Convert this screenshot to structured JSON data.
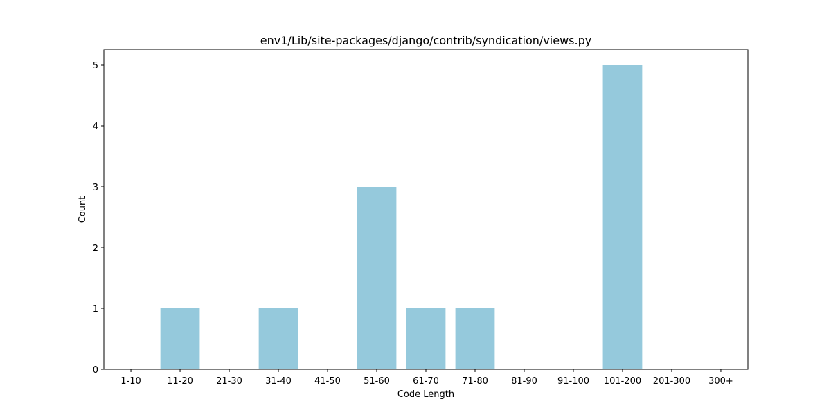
{
  "chart_data": {
    "type": "bar",
    "title": "env1/Lib/site-packages/django/contrib/syndication/views.py",
    "xlabel": "Code Length",
    "ylabel": "Count",
    "categories": [
      "1-10",
      "11-20",
      "21-30",
      "31-40",
      "41-50",
      "51-60",
      "61-70",
      "71-80",
      "81-90",
      "91-100",
      "101-200",
      "201-300",
      "300+"
    ],
    "values": [
      0,
      1,
      0,
      1,
      0,
      3,
      1,
      1,
      0,
      0,
      5,
      0,
      0
    ],
    "ylim": [
      0,
      5.25
    ],
    "yticks": [
      0,
      1,
      2,
      3,
      4,
      5
    ],
    "grid": false,
    "bar_color": "#95c9dc"
  }
}
